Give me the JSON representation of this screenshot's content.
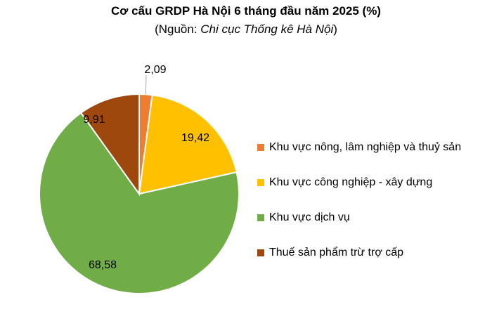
{
  "chart_data": {
    "type": "pie",
    "title": "Cơ cấu GRDP Hà Nội 6 tháng đầu năm 2025 (%)",
    "subtitle_prefix": "(Nguồn: ",
    "subtitle_source": "Chi cục Thống kê Hà Nội",
    "subtitle_suffix": ")",
    "legend_position": "right",
    "slices": [
      {
        "label": "Khu vực nông, lâm nghiệp và thuỷ sản",
        "value": 2.09,
        "value_label": "2,09",
        "color": "#ED7D31"
      },
      {
        "label": "Khu vực công nghiệp - xây dựng",
        "value": 19.42,
        "value_label": "19,42",
        "color": "#FFC000"
      },
      {
        "label": "Khu vực dịch vụ",
        "value": 68.58,
        "value_label": "68,58",
        "color": "#70AD47"
      },
      {
        "label": "Thuế sản phẩm trừ trợ cấp",
        "value": 9.91,
        "value_label": "9,91",
        "color": "#9E480E"
      }
    ]
  }
}
